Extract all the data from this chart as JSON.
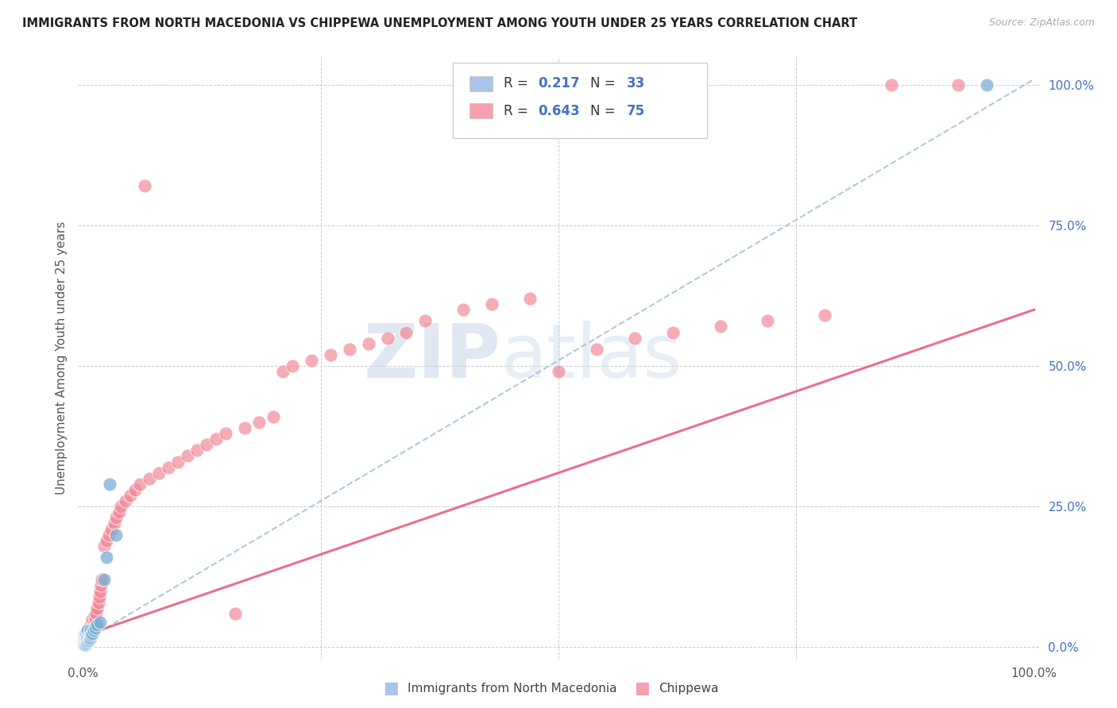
{
  "title": "IMMIGRANTS FROM NORTH MACEDONIA VS CHIPPEWA UNEMPLOYMENT AMONG YOUTH UNDER 25 YEARS CORRELATION CHART",
  "source": "Source: ZipAtlas.com",
  "ylabel": "Unemployment Among Youth under 25 years",
  "right_ytick_vals": [
    0.0,
    0.25,
    0.5,
    0.75,
    1.0
  ],
  "right_ytick_labels": [
    "0.0%",
    "25.0%",
    "50.0%",
    "75.0%",
    "100.0%"
  ],
  "watermark_zip": "ZIP",
  "watermark_atlas": "atlas",
  "bg_color": "#ffffff",
  "scatter_blue_color": "#7bafd4",
  "scatter_pink_color": "#f08090",
  "trendline_blue_color": "#a0bede",
  "trendline_pink_color": "#e8607a",
  "blue_x": [
    0.001,
    0.001,
    0.001,
    0.002,
    0.002,
    0.002,
    0.003,
    0.003,
    0.003,
    0.003,
    0.004,
    0.004,
    0.004,
    0.005,
    0.005,
    0.005,
    0.006,
    0.006,
    0.007,
    0.007,
    0.008,
    0.008,
    0.009,
    0.01,
    0.011,
    0.013,
    0.015,
    0.018,
    0.022,
    0.025,
    0.028,
    0.035,
    0.95
  ],
  "blue_y": [
    0.005,
    0.01,
    0.02,
    0.008,
    0.015,
    0.025,
    0.005,
    0.012,
    0.018,
    0.025,
    0.008,
    0.015,
    0.022,
    0.01,
    0.018,
    0.03,
    0.012,
    0.02,
    0.015,
    0.025,
    0.018,
    0.03,
    0.022,
    0.025,
    0.03,
    0.035,
    0.04,
    0.045,
    0.12,
    0.16,
    0.29,
    0.2,
    1.0
  ],
  "pink_x": [
    0.001,
    0.002,
    0.002,
    0.003,
    0.003,
    0.004,
    0.004,
    0.005,
    0.005,
    0.006,
    0.006,
    0.007,
    0.007,
    0.008,
    0.008,
    0.009,
    0.01,
    0.01,
    0.011,
    0.012,
    0.013,
    0.014,
    0.015,
    0.016,
    0.017,
    0.018,
    0.019,
    0.02,
    0.022,
    0.025,
    0.027,
    0.03,
    0.033,
    0.035,
    0.038,
    0.04,
    0.045,
    0.05,
    0.055,
    0.06,
    0.065,
    0.07,
    0.08,
    0.09,
    0.1,
    0.11,
    0.12,
    0.13,
    0.14,
    0.15,
    0.16,
    0.17,
    0.185,
    0.2,
    0.21,
    0.22,
    0.24,
    0.26,
    0.28,
    0.3,
    0.32,
    0.34,
    0.36,
    0.4,
    0.43,
    0.47,
    0.5,
    0.54,
    0.58,
    0.62,
    0.67,
    0.72,
    0.78,
    0.85,
    0.92
  ],
  "pink_y": [
    0.01,
    0.008,
    0.015,
    0.01,
    0.02,
    0.012,
    0.018,
    0.015,
    0.025,
    0.018,
    0.03,
    0.02,
    0.035,
    0.025,
    0.04,
    0.03,
    0.035,
    0.05,
    0.04,
    0.055,
    0.05,
    0.06,
    0.07,
    0.08,
    0.09,
    0.1,
    0.11,
    0.12,
    0.18,
    0.19,
    0.2,
    0.21,
    0.22,
    0.23,
    0.24,
    0.25,
    0.26,
    0.27,
    0.28,
    0.29,
    0.82,
    0.3,
    0.31,
    0.32,
    0.33,
    0.34,
    0.35,
    0.36,
    0.37,
    0.38,
    0.06,
    0.39,
    0.4,
    0.41,
    0.49,
    0.5,
    0.51,
    0.52,
    0.53,
    0.54,
    0.55,
    0.56,
    0.58,
    0.6,
    0.61,
    0.62,
    0.49,
    0.53,
    0.55,
    0.56,
    0.57,
    0.58,
    0.59,
    1.0,
    1.0
  ],
  "blue_trend_intercept": 0.01,
  "blue_trend_slope": 1.0,
  "pink_trend_intercept": 0.02,
  "pink_trend_slope": 0.58,
  "R_blue": "0.217",
  "N_blue": "33",
  "R_pink": "0.643",
  "N_pink": "75",
  "legend_label_blue": "Immigrants from North Macedonia",
  "legend_label_pink": "Chippewa"
}
